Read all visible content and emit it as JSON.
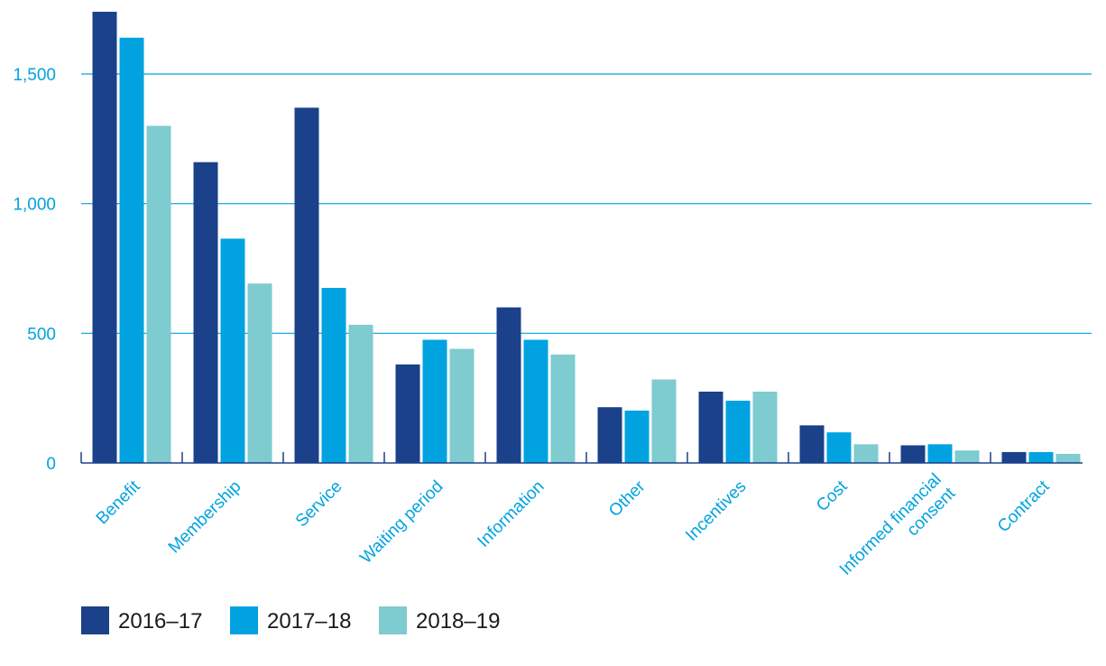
{
  "chart_data": {
    "type": "bar",
    "title": "",
    "xlabel": "",
    "ylabel": "",
    "ylim": [
      0,
      1750
    ],
    "yticks": [
      0,
      500,
      1000,
      1500
    ],
    "ytick_labels": [
      "0",
      "500",
      "1,000",
      "1,500"
    ],
    "categories": [
      "Benefit",
      "Membership",
      "Service",
      "Waiting period",
      "Information",
      "Other",
      "Incentives",
      "Cost",
      "Informed financial consent",
      "Contract"
    ],
    "category_lines": [
      [
        "Benefit"
      ],
      [
        "Membership"
      ],
      [
        "Service"
      ],
      [
        "Waiting period"
      ],
      [
        "Information"
      ],
      [
        "Other"
      ],
      [
        "Incentives"
      ],
      [
        "Cost"
      ],
      [
        "Informed financial",
        "consent"
      ],
      [
        "Contract"
      ]
    ],
    "series": [
      {
        "name": "2016–17",
        "color": "#1a4189",
        "values": [
          1740,
          1160,
          1370,
          380,
          600,
          215,
          275,
          145,
          68,
          42
        ]
      },
      {
        "name": "2017–18",
        "color": "#00a3e0",
        "values": [
          1640,
          865,
          675,
          475,
          475,
          202,
          240,
          118,
          72,
          42
        ]
      },
      {
        "name": "2018–19",
        "color": "#7ecbd0",
        "values": [
          1300,
          692,
          533,
          440,
          418,
          322,
          275,
          72,
          48,
          35
        ]
      }
    ],
    "grid": true,
    "legend_position": "bottom-left"
  },
  "colors": {
    "axis_text": "#00a3e0",
    "grid": "#00a3e0",
    "axis_line": "#1a4189"
  }
}
